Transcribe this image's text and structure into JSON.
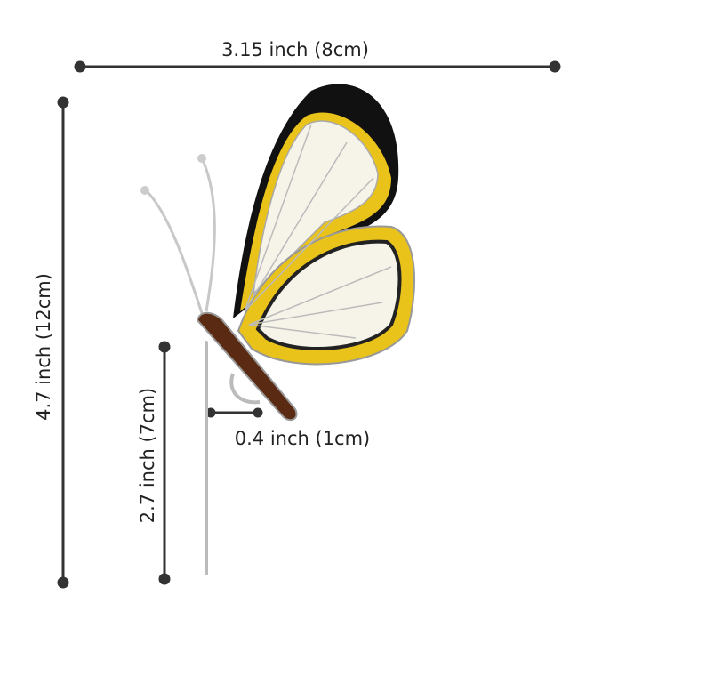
{
  "dimensions": {
    "width": "3.15 inch (8cm)",
    "height": "4.7 inch (12cm)",
    "stem_length": "2.7 inch (7cm)",
    "clip_width": "0.4 inch (1cm)"
  }
}
